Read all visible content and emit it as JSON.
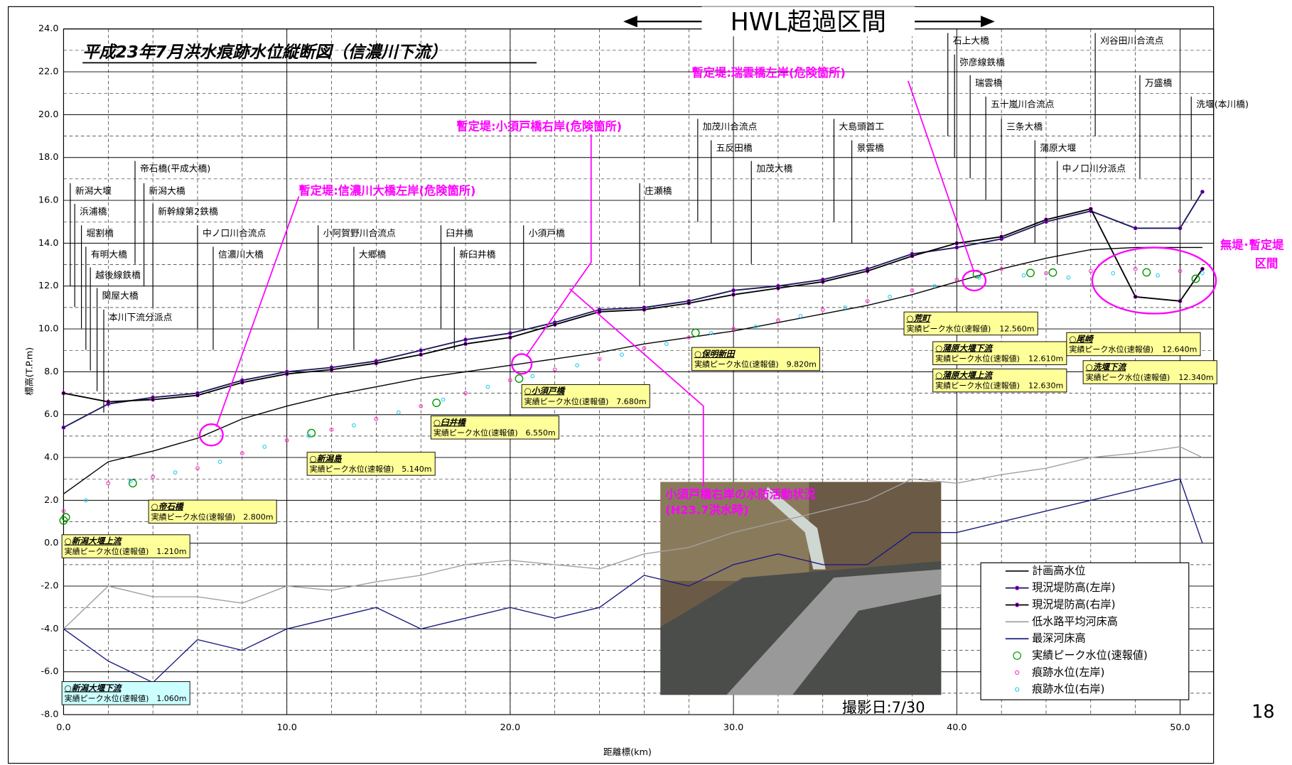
{
  "chart_data": {
    "type": "line",
    "title": "平成23年7月洪水痕跡水位縦断図（信濃川下流）",
    "xlabel": "距離標(km)",
    "ylabel": "標高(T.P.m)",
    "xlim": [
      0,
      51.5
    ],
    "ylim": [
      -8,
      24
    ],
    "xticks": [
      {
        "value": 0,
        "label": "0.0"
      },
      {
        "value": 10,
        "label": "10.0"
      },
      {
        "value": 20,
        "label": "20.0"
      },
      {
        "value": 30,
        "label": "30.0"
      },
      {
        "value": 40,
        "label": "40.0"
      },
      {
        "value": 50,
        "label": "50.0"
      }
    ],
    "yticks": [
      {
        "value": 24,
        "label": "24.0"
      },
      {
        "value": 22,
        "label": "22.0"
      },
      {
        "value": 20,
        "label": "20.0"
      },
      {
        "value": 18,
        "label": "18.0"
      },
      {
        "value": 16,
        "label": "16.0"
      },
      {
        "value": 14,
        "label": "14.0"
      },
      {
        "value": 12,
        "label": "12.0"
      },
      {
        "value": 10,
        "label": "10.0"
      },
      {
        "value": 8,
        "label": "8.0"
      },
      {
        "value": 6,
        "label": "6.0"
      },
      {
        "value": 4,
        "label": "4.0"
      },
      {
        "value": 2,
        "label": "2.0"
      },
      {
        "value": 0,
        "label": "0.0"
      },
      {
        "value": -2,
        "label": "-2.0"
      },
      {
        "value": -4,
        "label": "-4.0"
      },
      {
        "value": -6,
        "label": "-6.0"
      },
      {
        "value": -8,
        "label": "-8.0"
      }
    ],
    "grid": true,
    "series": [
      {
        "name": "計画高水位",
        "color": "#000000",
        "style": "line",
        "x": [
          0,
          2,
          4,
          6,
          8,
          10,
          12,
          14,
          16,
          18,
          20,
          22,
          24,
          26,
          28,
          30,
          32,
          34,
          36,
          38,
          40,
          42,
          44,
          46,
          48,
          50,
          51
        ],
        "values": [
          2.3,
          3.8,
          4.3,
          4.9,
          5.8,
          6.4,
          6.9,
          7.3,
          7.7,
          8.0,
          8.3,
          8.6,
          8.9,
          9.3,
          9.6,
          9.9,
          10.3,
          10.7,
          11.1,
          11.6,
          12.2,
          12.8,
          13.3,
          13.7,
          13.8,
          13.8,
          13.8
        ]
      },
      {
        "name": "現況堤防高(左岸)",
        "color": "#1a1a5e",
        "style": "line-dot",
        "x": [
          0,
          2,
          4,
          6,
          8,
          10,
          12,
          14,
          16,
          18,
          20,
          22,
          24,
          26,
          28,
          30,
          32,
          34,
          36,
          38,
          40,
          42,
          44,
          46,
          48,
          50,
          51
        ],
        "values": [
          5.4,
          6.5,
          6.8,
          7.0,
          7.6,
          8.0,
          8.2,
          8.5,
          9.0,
          9.5,
          9.8,
          10.3,
          10.9,
          11.0,
          11.3,
          11.8,
          12.0,
          12.3,
          12.8,
          13.5,
          13.8,
          14.2,
          15.0,
          15.5,
          14.7,
          14.7,
          16.4
        ]
      },
      {
        "name": "現況堤防高(右岸)",
        "color": "#000000",
        "style": "line-dot",
        "x": [
          0,
          2,
          4,
          6,
          8,
          10,
          12,
          14,
          16,
          18,
          20,
          22,
          24,
          26,
          28,
          30,
          32,
          34,
          36,
          38,
          40,
          42,
          44,
          46,
          48,
          50,
          51
        ],
        "values": [
          7.0,
          6.6,
          6.7,
          6.9,
          7.5,
          7.9,
          8.1,
          8.4,
          8.8,
          9.3,
          9.6,
          10.2,
          10.8,
          10.9,
          11.2,
          11.6,
          11.9,
          12.2,
          12.7,
          13.4,
          14.0,
          14.3,
          15.1,
          15.6,
          11.5,
          11.3,
          12.8
        ]
      },
      {
        "name": "低水路平均河床高",
        "color": "#a0a0a0",
        "style": "line",
        "x": [
          0,
          2,
          4,
          6,
          8,
          10,
          12,
          14,
          16,
          18,
          20,
          22,
          24,
          26,
          28,
          30,
          32,
          34,
          36,
          38,
          40,
          42,
          44,
          46,
          48,
          50,
          51
        ],
        "values": [
          -4,
          -2,
          -2.5,
          -2.5,
          -2.8,
          -2,
          -2.2,
          -1.8,
          -1.5,
          -1,
          -0.8,
          -1,
          -1.2,
          -0.5,
          -0.2,
          0.5,
          1,
          1.5,
          2,
          3,
          2.8,
          3.2,
          3.5,
          4,
          4.2,
          4.5,
          4
        ]
      },
      {
        "name": "最深河床高",
        "color": "#1c1c80",
        "style": "line",
        "x": [
          0,
          2,
          4,
          6,
          8,
          10,
          12,
          14,
          16,
          18,
          20,
          22,
          24,
          26,
          28,
          30,
          32,
          34,
          36,
          38,
          40,
          42,
          44,
          46,
          48,
          50,
          51
        ],
        "values": [
          -4,
          -5.5,
          -6.5,
          -4.5,
          -5,
          -4,
          -3.5,
          -3,
          -4,
          -3.5,
          -3,
          -3.5,
          -3,
          -1.5,
          -2,
          -1,
          -0.5,
          -1,
          -1,
          0.5,
          0.5,
          1,
          1.5,
          2,
          2.5,
          3,
          0
        ]
      },
      {
        "name": "実績ピーク水位(速報値)",
        "color": "#009900",
        "style": "circle",
        "x": [
          0,
          0.1,
          3.1,
          11.1,
          16.7,
          20.4,
          28.3,
          40.9,
          43.3,
          44.3,
          48.5,
          50.7
        ],
        "values": [
          1.06,
          1.21,
          2.8,
          5.14,
          6.55,
          7.68,
          9.82,
          12.56,
          12.61,
          12.63,
          12.64,
          12.34
        ],
        "value_labels": [
          "1.060m",
          "1.210m",
          "2.800m",
          "5.140m",
          "6.550m",
          "7.680m",
          "9.820m",
          "12.560m",
          "12.610m",
          "12.630m",
          "12.640m",
          "12.340m"
        ],
        "point_labels": [
          "○新潟大堰下流",
          "○新潟大堰上流",
          "○帝石橋",
          "○新潟島",
          "○臼井橋",
          "○小須戸橋",
          "○保明新田",
          "○荒町",
          "○蒲原大堰下流",
          "○蒲原大堰上流",
          "○尾崎",
          "○洗堰下流"
        ],
        "caption": "実績ピーク水位(速報値)"
      },
      {
        "name": "痕跡水位(左岸)",
        "color": "#ff33cc",
        "style": "dot",
        "x": [
          0,
          2,
          4,
          6,
          8,
          10,
          12,
          14,
          16,
          18,
          20,
          22,
          24,
          26,
          28,
          30,
          32,
          34,
          36,
          38,
          40,
          42,
          44,
          46,
          48,
          50
        ],
        "values": [
          1.5,
          2.8,
          3.1,
          3.5,
          4.2,
          4.8,
          5.3,
          5.8,
          6.4,
          7.0,
          7.6,
          8.1,
          8.6,
          9.1,
          9.6,
          10.0,
          10.4,
          10.9,
          11.3,
          11.8,
          12.3,
          12.8,
          12.6,
          12.7,
          12.8,
          12.7
        ]
      },
      {
        "name": "痕跡水位(右岸)",
        "color": "#33ccee",
        "style": "dot",
        "x": [
          1,
          3,
          5,
          7,
          9,
          11,
          13,
          15,
          17,
          19,
          21,
          23,
          25,
          27,
          29,
          31,
          33,
          35,
          37,
          39,
          41,
          43,
          45,
          47,
          49,
          51
        ],
        "values": [
          2.0,
          2.9,
          3.3,
          3.8,
          4.5,
          5.0,
          5.5,
          6.1,
          6.7,
          7.3,
          7.8,
          8.3,
          8.8,
          9.3,
          9.8,
          10.1,
          10.6,
          11.0,
          11.5,
          12.0,
          12.4,
          12.5,
          12.4,
          12.6,
          12.5,
          12.6
        ]
      }
    ],
    "landmarks": [
      {
        "label": "新潟大堰",
        "x": 0.3
      },
      {
        "label": "浜浦橋",
        "x": 0.5
      },
      {
        "label": "堀割橋",
        "x": 0.8
      },
      {
        "label": "有明大橋",
        "x": 1.0
      },
      {
        "label": "越後線鉄橋",
        "x": 1.2
      },
      {
        "label": "関屋大橋",
        "x": 1.5
      },
      {
        "label": "本川下流分派点",
        "x": 1.8
      },
      {
        "label": "帝石橋(平成大橋)",
        "x": 3.2
      },
      {
        "label": "新潟大橋",
        "x": 3.6
      },
      {
        "label": "新幹線第2鉄橋",
        "x": 4.0
      },
      {
        "label": "中ノ口川合流点",
        "x": 6.0
      },
      {
        "label": "信濃川大橋",
        "x": 6.7
      },
      {
        "label": "小阿賀野川合流点",
        "x": 11.4
      },
      {
        "label": "大郷橋",
        "x": 13.0
      },
      {
        "label": "臼井橋",
        "x": 16.9
      },
      {
        "label": "新臼井橋",
        "x": 17.5
      },
      {
        "label": "小須戸橋",
        "x": 20.6
      },
      {
        "label": "庄瀬橋",
        "x": 25.8
      },
      {
        "label": "加茂川合流点",
        "x": 28.4
      },
      {
        "label": "五反田橋",
        "x": 29.0
      },
      {
        "label": "加茂大橋",
        "x": 30.8
      },
      {
        "label": "大島頭首工",
        "x": 34.5
      },
      {
        "label": "景雲橋",
        "x": 35.3
      },
      {
        "label": "石上大橋",
        "x": 39.6
      },
      {
        "label": "弥彦線鉄橋",
        "x": 39.9
      },
      {
        "label": "瑞雲橋",
        "x": 40.6
      },
      {
        "label": "五十嵐川合流点",
        "x": 41.3
      },
      {
        "label": "三条大橋",
        "x": 42.0
      },
      {
        "label": "蒲原大堰",
        "x": 43.5
      },
      {
        "label": "中ノ口川分派点",
        "x": 44.5
      },
      {
        "label": "刈谷田川合流点",
        "x": 46.2
      },
      {
        "label": "万盛橋",
        "x": 48.2
      },
      {
        "label": "洗堰(本川橋)",
        "x": 50.5
      }
    ],
    "annotations": {
      "hwl": "HWL超過区間",
      "a1": "暫定堤:信濃川大橋左岸(危険箇所)",
      "a2": "暫定堤:小須戸橋右岸(危険箇所)",
      "a3": "暫定堤:瑞雲橋左岸(危険箇所)",
      "a4a": "無堤･暫定堤",
      "a4b": "区間",
      "photo1": "小須戸橋右岸の水防活動状況",
      "photo2": "(H23.7洪水時)",
      "date": "撮影日:7/30"
    },
    "page_number": "18"
  }
}
